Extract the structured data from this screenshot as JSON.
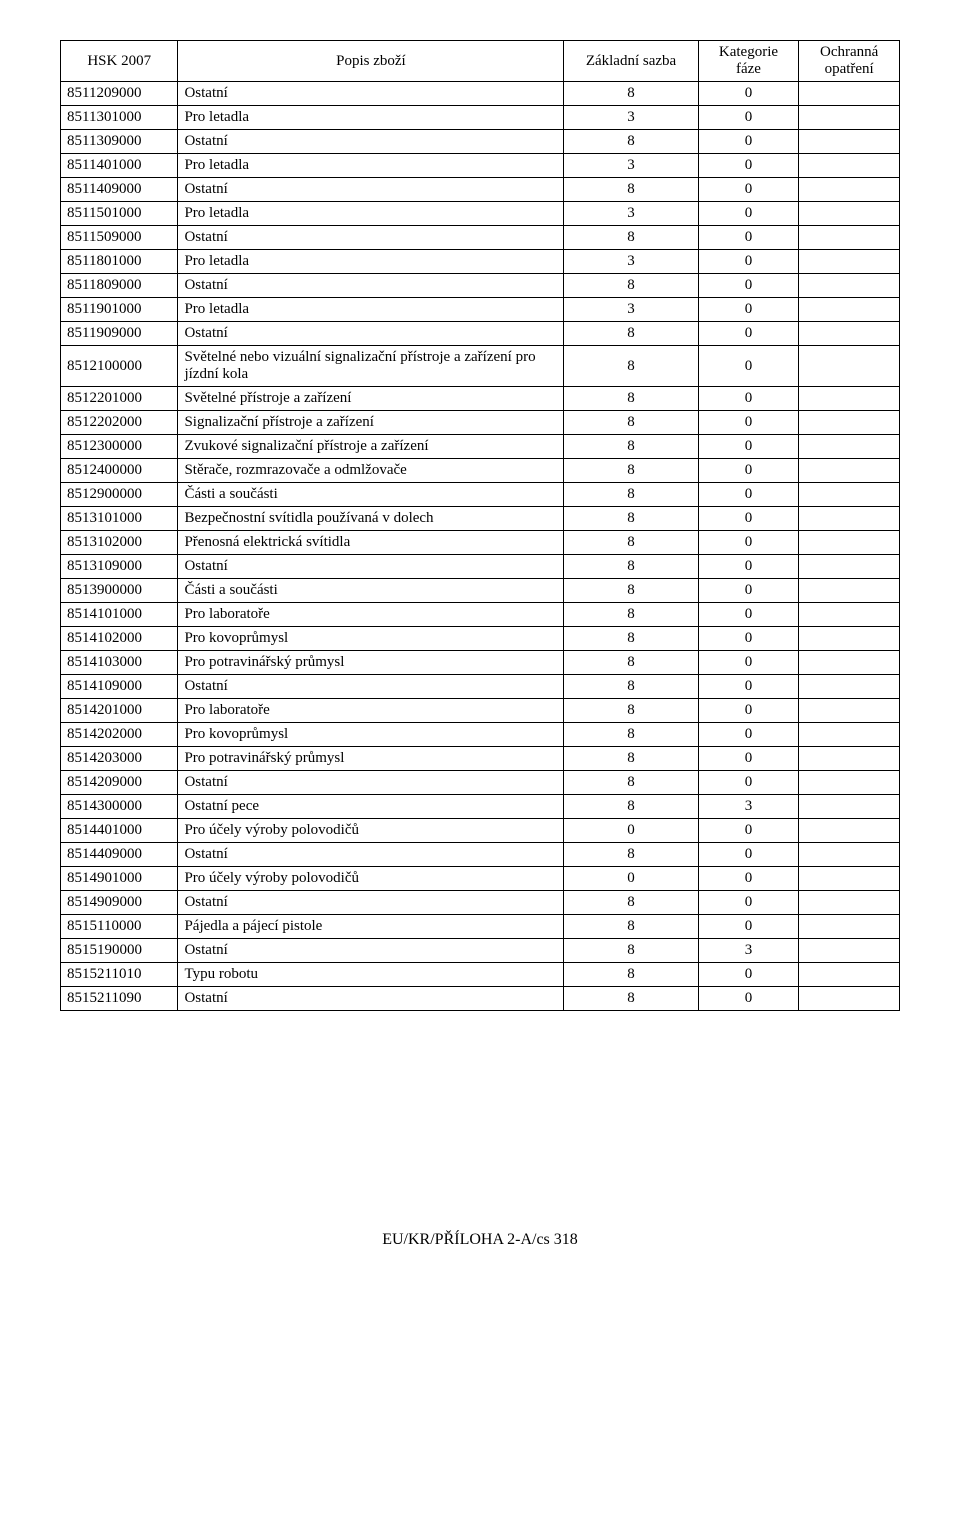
{
  "headers": {
    "c0": "HSK 2007",
    "c1": "Popis zboží",
    "c2": "Základní sazba",
    "c3": "Kategorie fáze",
    "c4": "Ochranná opatření"
  },
  "rows": [
    {
      "code": "8511209000",
      "desc": "Ostatní",
      "sazba": "8",
      "faze": "0",
      "opat": ""
    },
    {
      "code": "8511301000",
      "desc": "Pro letadla",
      "sazba": "3",
      "faze": "0",
      "opat": ""
    },
    {
      "code": "8511309000",
      "desc": "Ostatní",
      "sazba": "8",
      "faze": "0",
      "opat": ""
    },
    {
      "code": "8511401000",
      "desc": "Pro letadla",
      "sazba": "3",
      "faze": "0",
      "opat": ""
    },
    {
      "code": "8511409000",
      "desc": "Ostatní",
      "sazba": "8",
      "faze": "0",
      "opat": ""
    },
    {
      "code": "8511501000",
      "desc": "Pro letadla",
      "sazba": "3",
      "faze": "0",
      "opat": ""
    },
    {
      "code": "8511509000",
      "desc": "Ostatní",
      "sazba": "8",
      "faze": "0",
      "opat": ""
    },
    {
      "code": "8511801000",
      "desc": "Pro letadla",
      "sazba": "3",
      "faze": "0",
      "opat": ""
    },
    {
      "code": "8511809000",
      "desc": "Ostatní",
      "sazba": "8",
      "faze": "0",
      "opat": ""
    },
    {
      "code": "8511901000",
      "desc": "Pro letadla",
      "sazba": "3",
      "faze": "0",
      "opat": ""
    },
    {
      "code": "8511909000",
      "desc": "Ostatní",
      "sazba": "8",
      "faze": "0",
      "opat": ""
    },
    {
      "code": "8512100000",
      "desc": "Světelné nebo vizuální signalizační přístroje a zařízení pro jízdní kola",
      "sazba": "8",
      "faze": "0",
      "opat": ""
    },
    {
      "code": "8512201000",
      "desc": "Světelné přístroje a zařízení",
      "sazba": "8",
      "faze": "0",
      "opat": ""
    },
    {
      "code": "8512202000",
      "desc": "Signalizační přístroje a zařízení",
      "sazba": "8",
      "faze": "0",
      "opat": ""
    },
    {
      "code": "8512300000",
      "desc": "Zvukové signalizační přístroje a zařízení",
      "sazba": "8",
      "faze": "0",
      "opat": ""
    },
    {
      "code": "8512400000",
      "desc": "Stěrače, rozmrazovače a odmlžovače",
      "sazba": "8",
      "faze": "0",
      "opat": ""
    },
    {
      "code": "8512900000",
      "desc": "Části a součásti",
      "sazba": "8",
      "faze": "0",
      "opat": ""
    },
    {
      "code": "8513101000",
      "desc": "Bezpečnostní svítidla používaná v dolech",
      "sazba": "8",
      "faze": "0",
      "opat": ""
    },
    {
      "code": "8513102000",
      "desc": "Přenosná elektrická svítidla",
      "sazba": "8",
      "faze": "0",
      "opat": ""
    },
    {
      "code": "8513109000",
      "desc": "Ostatní",
      "sazba": "8",
      "faze": "0",
      "opat": ""
    },
    {
      "code": "8513900000",
      "desc": "Části a součásti",
      "sazba": "8",
      "faze": "0",
      "opat": ""
    },
    {
      "code": "8514101000",
      "desc": "Pro laboratoře",
      "sazba": "8",
      "faze": "0",
      "opat": ""
    },
    {
      "code": "8514102000",
      "desc": "Pro kovoprůmysl",
      "sazba": "8",
      "faze": "0",
      "opat": ""
    },
    {
      "code": "8514103000",
      "desc": "Pro potravinářský průmysl",
      "sazba": "8",
      "faze": "0",
      "opat": ""
    },
    {
      "code": "8514109000",
      "desc": "Ostatní",
      "sazba": "8",
      "faze": "0",
      "opat": ""
    },
    {
      "code": "8514201000",
      "desc": "Pro laboratoře",
      "sazba": "8",
      "faze": "0",
      "opat": ""
    },
    {
      "code": "8514202000",
      "desc": "Pro kovoprůmysl",
      "sazba": "8",
      "faze": "0",
      "opat": ""
    },
    {
      "code": "8514203000",
      "desc": "Pro potravinářský průmysl",
      "sazba": "8",
      "faze": "0",
      "opat": ""
    },
    {
      "code": "8514209000",
      "desc": "Ostatní",
      "sazba": "8",
      "faze": "0",
      "opat": ""
    },
    {
      "code": "8514300000",
      "desc": "Ostatní pece",
      "sazba": "8",
      "faze": "3",
      "opat": ""
    },
    {
      "code": "8514401000",
      "desc": "Pro účely výroby polovodičů",
      "sazba": "0",
      "faze": "0",
      "opat": ""
    },
    {
      "code": "8514409000",
      "desc": "Ostatní",
      "sazba": "8",
      "faze": "0",
      "opat": ""
    },
    {
      "code": "8514901000",
      "desc": "Pro účely výroby polovodičů",
      "sazba": "0",
      "faze": "0",
      "opat": ""
    },
    {
      "code": "8514909000",
      "desc": "Ostatní",
      "sazba": "8",
      "faze": "0",
      "opat": ""
    },
    {
      "code": "8515110000",
      "desc": "Pájedla a pájecí pistole",
      "sazba": "8",
      "faze": "0",
      "opat": ""
    },
    {
      "code": "8515190000",
      "desc": "Ostatní",
      "sazba": "8",
      "faze": "3",
      "opat": ""
    },
    {
      "code": "8515211010",
      "desc": "Typu robotu",
      "sazba": "8",
      "faze": "0",
      "opat": ""
    },
    {
      "code": "8515211090",
      "desc": "Ostatní",
      "sazba": "8",
      "faze": "0",
      "opat": ""
    }
  ],
  "footer": "EU/KR/PŘÍLOHA 2-A/cs 318"
}
